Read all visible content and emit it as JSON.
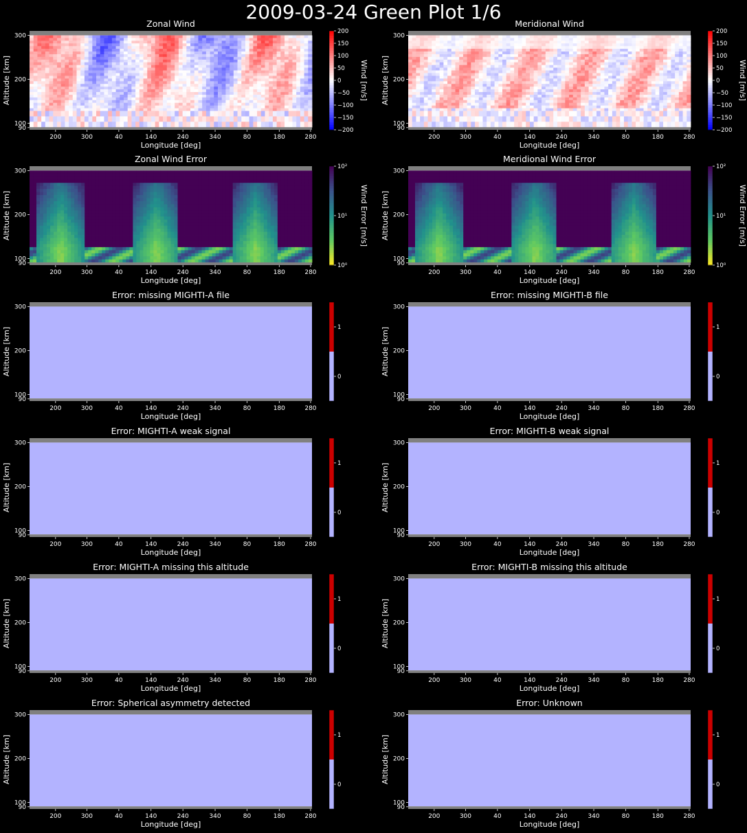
{
  "page": {
    "title": "2009-03-24 Green Plot 1/6"
  },
  "colors": {
    "background": "#000000",
    "no_data_band": "#808080",
    "flag_zero": "#b3b3ff",
    "flag_one": "#cc0000"
  },
  "axis_text": {
    "xlabel": "Longitude [deg]",
    "ylabel": "Altitude [km]"
  },
  "chart_data": [
    {
      "id": "zonal-wind",
      "type": "heatmap",
      "title": "Zonal Wind",
      "xlabel": "Longitude [deg]",
      "ylabel": "Altitude [km]",
      "xticks": [
        "200",
        "300",
        "40",
        "140",
        "240",
        "340",
        "80",
        "180",
        "280"
      ],
      "yticks": [
        "90",
        "100",
        "200",
        "300"
      ],
      "cmap": "bwr",
      "clim": [
        -200,
        200
      ],
      "colorbar_label": "Wind [m/s]",
      "colorbar_ticks": [
        "200",
        "150",
        "100",
        "50",
        "0",
        "−50",
        "−100",
        "−150",
        "−200"
      ]
    },
    {
      "id": "meridional-wind",
      "type": "heatmap",
      "title": "Meridional Wind",
      "xlabel": "Longitude [deg]",
      "ylabel": "Altitude [km]",
      "xticks": [
        "200",
        "300",
        "40",
        "140",
        "240",
        "340",
        "80",
        "180",
        "280"
      ],
      "yticks": [
        "90",
        "100",
        "200",
        "300"
      ],
      "cmap": "bwr",
      "clim": [
        -200,
        200
      ],
      "colorbar_label": "Wind [m/s]",
      "colorbar_ticks": [
        "200",
        "150",
        "100",
        "50",
        "0",
        "−50",
        "−100",
        "−150",
        "−200"
      ]
    },
    {
      "id": "zonal-wind-error",
      "type": "heatmap",
      "title": "Zonal Wind Error",
      "xlabel": "Longitude [deg]",
      "ylabel": "Altitude [km]",
      "xticks": [
        "200",
        "300",
        "40",
        "140",
        "240",
        "340",
        "80",
        "180",
        "280"
      ],
      "yticks": [
        "90",
        "100",
        "200",
        "300"
      ],
      "cmap": "viridis_r",
      "scale": "log",
      "clim": [
        1,
        100
      ],
      "colorbar_label": "Wind Error [m/s]",
      "colorbar_ticks": [
        "10²",
        "10¹",
        "10⁰"
      ]
    },
    {
      "id": "meridional-wind-error",
      "type": "heatmap",
      "title": "Meridional Wind Error",
      "xlabel": "Longitude [deg]",
      "ylabel": "Altitude [km]",
      "xticks": [
        "200",
        "300",
        "40",
        "140",
        "240",
        "340",
        "80",
        "180",
        "280"
      ],
      "yticks": [
        "90",
        "100",
        "200",
        "300"
      ],
      "cmap": "viridis_r",
      "scale": "log",
      "clim": [
        1,
        100
      ],
      "colorbar_label": "Wind Error [m/s]",
      "colorbar_ticks": [
        "10²",
        "10¹",
        "10⁰"
      ]
    },
    {
      "id": "missing-a",
      "type": "heatmap",
      "title": "Error: missing MIGHTI-A file",
      "xlabel": "Longitude [deg]",
      "ylabel": "Altitude [km]",
      "xticks": [
        "200",
        "300",
        "40",
        "140",
        "240",
        "340",
        "80",
        "180",
        "280"
      ],
      "yticks": [
        "90",
        "100",
        "200",
        "300"
      ],
      "value": 0,
      "clim": [
        0,
        1
      ],
      "colorbar_ticks": [
        "1",
        "0"
      ]
    },
    {
      "id": "missing-b",
      "type": "heatmap",
      "title": "Error: missing MIGHTI-B file",
      "xlabel": "Longitude [deg]",
      "ylabel": "Altitude [km]",
      "xticks": [
        "200",
        "300",
        "40",
        "140",
        "240",
        "340",
        "80",
        "180",
        "280"
      ],
      "yticks": [
        "90",
        "100",
        "200",
        "300"
      ],
      "value": 0,
      "clim": [
        0,
        1
      ],
      "colorbar_ticks": [
        "1",
        "0"
      ]
    },
    {
      "id": "weak-a",
      "type": "heatmap",
      "title": "Error: MIGHTI-A weak signal",
      "xlabel": "Longitude [deg]",
      "ylabel": "Altitude [km]",
      "xticks": [
        "200",
        "300",
        "40",
        "140",
        "240",
        "340",
        "80",
        "180",
        "280"
      ],
      "yticks": [
        "90",
        "100",
        "200",
        "300"
      ],
      "value": 0,
      "clim": [
        0,
        1
      ],
      "colorbar_ticks": [
        "1",
        "0"
      ]
    },
    {
      "id": "weak-b",
      "type": "heatmap",
      "title": "Error: MIGHTI-B weak signal",
      "xlabel": "Longitude [deg]",
      "ylabel": "Altitude [km]",
      "xticks": [
        "200",
        "300",
        "40",
        "140",
        "240",
        "340",
        "80",
        "180",
        "280"
      ],
      "yticks": [
        "90",
        "100",
        "200",
        "300"
      ],
      "value": 0,
      "clim": [
        0,
        1
      ],
      "colorbar_ticks": [
        "1",
        "0"
      ]
    },
    {
      "id": "alt-a",
      "type": "heatmap",
      "title": "Error: MIGHTI-A missing this altitude",
      "xlabel": "Longitude [deg]",
      "ylabel": "Altitude [km]",
      "xticks": [
        "200",
        "300",
        "40",
        "140",
        "240",
        "340",
        "80",
        "180",
        "280"
      ],
      "yticks": [
        "90",
        "100",
        "200",
        "300"
      ],
      "value": 0,
      "clim": [
        0,
        1
      ],
      "colorbar_ticks": [
        "1",
        "0"
      ]
    },
    {
      "id": "alt-b",
      "type": "heatmap",
      "title": "Error: MIGHTI-B missing this altitude",
      "xlabel": "Longitude [deg]",
      "ylabel": "Altitude [km]",
      "xticks": [
        "200",
        "300",
        "40",
        "140",
        "240",
        "340",
        "80",
        "180",
        "280"
      ],
      "yticks": [
        "90",
        "100",
        "200",
        "300"
      ],
      "value": 0,
      "clim": [
        0,
        1
      ],
      "colorbar_ticks": [
        "1",
        "0"
      ]
    },
    {
      "id": "asym",
      "type": "heatmap",
      "title": "Error: Spherical asymmetry detected",
      "xlabel": "Longitude [deg]",
      "ylabel": "Altitude [km]",
      "xticks": [
        "200",
        "300",
        "40",
        "140",
        "240",
        "340",
        "80",
        "180",
        "280"
      ],
      "yticks": [
        "90",
        "100",
        "200",
        "300"
      ],
      "value": 0,
      "clim": [
        0,
        1
      ],
      "colorbar_ticks": [
        "1",
        "0"
      ]
    },
    {
      "id": "unknown",
      "type": "heatmap",
      "title": "Error: Unknown",
      "xlabel": "Longitude [deg]",
      "ylabel": "Altitude [km]",
      "xticks": [
        "200",
        "300",
        "40",
        "140",
        "240",
        "340",
        "80",
        "180",
        "280"
      ],
      "yticks": [
        "90",
        "100",
        "200",
        "300"
      ],
      "value": 0,
      "clim": [
        0,
        1
      ],
      "colorbar_ticks": [
        "1",
        "0"
      ]
    }
  ]
}
